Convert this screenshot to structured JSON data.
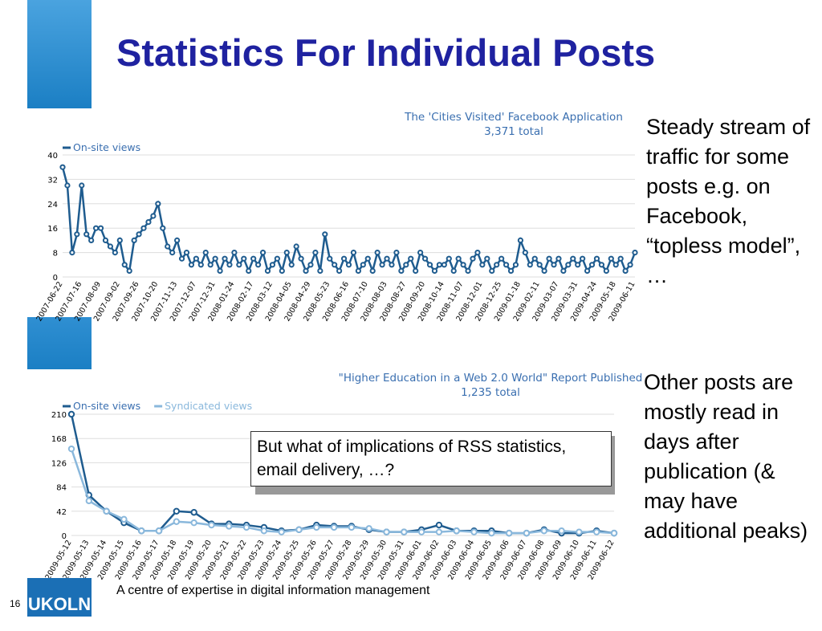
{
  "title": "Statistics For Individual Posts",
  "notes": [
    "Steady stream of traffic for some posts e.g. on Facebook, “topless model”, …",
    "Other posts are mostly read in days after publication (& may have additional peaks)"
  ],
  "callout": "But what of implications of RSS statistics, email delivery, …?",
  "footer": "A centre of expertise in digital information management",
  "slide_number": "16",
  "logo": "UKOLN",
  "chart_data": [
    {
      "type": "line",
      "title": "The 'Cities Visited' Facebook Application",
      "subtitle": "3,371 total",
      "categories": [
        "2007-06-22",
        null,
        null,
        null,
        "2007-07-16",
        null,
        null,
        null,
        "2007-08-09",
        null,
        null,
        null,
        "2007-09-02",
        null,
        null,
        null,
        "2007-09-26",
        null,
        null,
        null,
        "2007-10-20",
        null,
        null,
        null,
        "2007-11-13",
        null,
        null,
        null,
        "2007-12-07",
        null,
        null,
        null,
        "2007-12-31",
        null,
        null,
        null,
        "2008-01-24",
        null,
        null,
        null,
        "2008-02-17",
        null,
        null,
        null,
        "2008-03-12",
        null,
        null,
        null,
        "2008-04-05",
        null,
        null,
        null,
        "2008-04-29",
        null,
        null,
        null,
        "2008-05-23",
        null,
        null,
        null,
        "2008-06-16",
        null,
        null,
        null,
        "2008-07-10",
        null,
        null,
        null,
        "2008-08-03",
        null,
        null,
        null,
        "2008-08-27",
        null,
        null,
        null,
        "2008-09-20",
        null,
        null,
        null,
        "2008-10-14",
        null,
        null,
        null,
        "2008-11-07",
        null,
        null,
        null,
        "2008-12-01",
        null,
        null,
        null,
        "2008-12-25",
        null,
        null,
        null,
        "2009-01-18",
        null,
        null,
        null,
        "2009-02-11",
        null,
        null,
        null,
        "2009-03-07",
        null,
        null,
        null,
        "2009-03-31",
        null,
        null,
        null,
        "2009-04-24",
        null,
        null,
        null,
        "2009-05-18",
        null,
        null,
        null,
        "2009-06-11"
      ],
      "series": [
        {
          "name": "On-site views",
          "color": "#1f5c8f",
          "values": [
            36,
            30,
            8,
            14,
            30,
            14,
            12,
            16,
            16,
            12,
            10,
            8,
            12,
            4,
            2,
            12,
            14,
            16,
            18,
            20,
            24,
            16,
            10,
            8,
            12,
            6,
            8,
            4,
            6,
            4,
            8,
            4,
            6,
            2,
            6,
            4,
            8,
            4,
            6,
            2,
            6,
            4,
            8,
            2,
            4,
            6,
            2,
            8,
            4,
            10,
            6,
            2,
            4,
            8,
            2,
            14,
            6,
            4,
            2,
            6,
            4,
            8,
            2,
            4,
            6,
            2,
            8,
            4,
            6,
            4,
            8,
            2,
            4,
            6,
            2,
            8,
            6,
            4,
            2,
            4,
            4,
            6,
            2,
            6,
            4,
            2,
            6,
            8,
            4,
            6,
            2,
            4,
            6,
            4,
            2,
            4,
            12,
            8,
            4,
            6,
            4,
            2,
            6,
            4,
            6,
            2,
            4,
            6,
            4,
            6,
            2,
            4,
            6,
            4,
            2,
            6,
            4,
            6,
            2,
            4,
            8
          ]
        }
      ],
      "ylim": [
        0,
        40
      ],
      "yticks": [
        0,
        8,
        16,
        24,
        32,
        40
      ],
      "grid": true
    },
    {
      "type": "line",
      "title": "\"Higher Education in a Web 2.0 World\" Report Published",
      "subtitle": "1,235 total",
      "categories": [
        "2009-05-12",
        "2009-05-13",
        "2009-05-14",
        "2009-05-15",
        "2009-05-16",
        "2009-05-17",
        "2009-05-18",
        "2009-05-19",
        "2009-05-20",
        "2009-05-21",
        "2009-05-22",
        "2009-05-23",
        "2009-05-24",
        "2009-05-25",
        "2009-05-26",
        "2009-05-27",
        "2009-05-28",
        "2009-05-29",
        "2009-05-30",
        "2009-05-31",
        "2009-06-01",
        "2009-06-02",
        "2009-06-03",
        "2009-06-04",
        "2009-06-05",
        "2009-06-06",
        "2009-06-07",
        "2009-06-08",
        "2009-06-09",
        "2009-06-10",
        "2009-06-11",
        "2009-06-12"
      ],
      "series": [
        {
          "name": "On-site views",
          "color": "#1f5c8f",
          "values": [
            210,
            70,
            42,
            22,
            8,
            8,
            42,
            40,
            20,
            20,
            18,
            14,
            8,
            10,
            18,
            16,
            16,
            10,
            6,
            6,
            10,
            18,
            8,
            8,
            8,
            4,
            4,
            10,
            4,
            4,
            8,
            4
          ]
        },
        {
          "name": "Syndicated views",
          "color": "#8ab8dc",
          "values": [
            150,
            60,
            42,
            28,
            8,
            8,
            24,
            22,
            18,
            16,
            14,
            8,
            6,
            10,
            14,
            14,
            14,
            12,
            6,
            6,
            6,
            6,
            8,
            6,
            4,
            4,
            4,
            8,
            8,
            6,
            6,
            4
          ]
        }
      ],
      "ylim": [
        0,
        210
      ],
      "yticks": [
        0,
        42,
        84,
        126,
        168,
        210
      ],
      "grid": true
    }
  ]
}
